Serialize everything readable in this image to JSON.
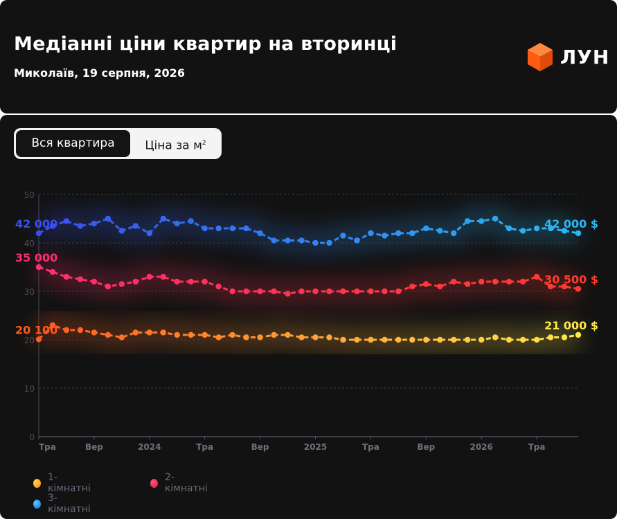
{
  "header": {
    "title": "Медіанні ціни квартир на вторинці",
    "subtitle": "Миколаїв, 19 серпня, 2026",
    "logo_text": "ЛУН"
  },
  "toggle": {
    "option_whole": "Вся квартира",
    "option_per_m2": "Ціна за м",
    "option_per_m2_sup": "2"
  },
  "legend": [
    {
      "label": "1-кімнатні",
      "color": "#ff9f1a"
    },
    {
      "label": "2-кімнатні",
      "color": "#ff2d55"
    },
    {
      "label": "3-кімнатні",
      "color": "#1e90ff"
    }
  ],
  "chart_data": {
    "type": "line",
    "ylim": [
      0,
      50
    ],
    "yticks": [
      0,
      10,
      20,
      30,
      40,
      50
    ],
    "x_tick_labels": [
      {
        "i": 0,
        "label": "Тра"
      },
      {
        "i": 4,
        "label": "Вер"
      },
      {
        "i": 8,
        "label": "2024"
      },
      {
        "i": 12,
        "label": "Тра"
      },
      {
        "i": 16,
        "label": "Вер"
      },
      {
        "i": 20,
        "label": "2025"
      },
      {
        "i": 24,
        "label": "Тра"
      },
      {
        "i": 28,
        "label": "Вер"
      },
      {
        "i": 32,
        "label": "2026"
      },
      {
        "i": 36,
        "label": "Тра"
      }
    ],
    "series": [
      {
        "name": "3-кімнатні",
        "start_label": "42 000",
        "end_label": "42 000 $",
        "colors": [
          "#3a4ff0",
          "#2bb8f0"
        ],
        "values": [
          42,
          43.5,
          44.5,
          43.5,
          44,
          45,
          42.5,
          43.5,
          42,
          45,
          44,
          44.5,
          43,
          43,
          43,
          43,
          42,
          40.5,
          40.5,
          40.5,
          40,
          40,
          41.5,
          40.5,
          42,
          41.5,
          42,
          42,
          43,
          42.5,
          42,
          44.5,
          44.5,
          45,
          43,
          42.5,
          43,
          43,
          42.5,
          42
        ]
      },
      {
        "name": "2-кімнатні",
        "start_label": "35 000",
        "end_label": "30 500 $",
        "colors": [
          "#ff2d6f",
          "#ff3b2f"
        ],
        "values": [
          35,
          34,
          33,
          32.5,
          32,
          31,
          31.5,
          32,
          33,
          33,
          32,
          32,
          32,
          31,
          30,
          30,
          30,
          30,
          29.5,
          30,
          30,
          30,
          30,
          30,
          30,
          30,
          30,
          31,
          31.5,
          31,
          32,
          31.5,
          32,
          32,
          32,
          32,
          33,
          31,
          31,
          30.5
        ]
      },
      {
        "name": "1-кімнатні",
        "start_label": "20 100",
        "end_label": "21 000 $",
        "colors": [
          "#ff5a1f",
          "#ffe94a"
        ],
        "values": [
          20.1,
          23,
          22,
          22,
          21.5,
          21,
          20.5,
          21.5,
          21.5,
          21.5,
          21,
          21,
          21,
          20.5,
          21,
          20.5,
          20.5,
          21,
          21,
          20.5,
          20.5,
          20.5,
          20,
          20,
          20,
          20,
          20,
          20,
          20,
          20,
          20,
          20,
          20,
          20.5,
          20,
          20,
          20,
          20.5,
          20.5,
          21
        ]
      }
    ]
  }
}
